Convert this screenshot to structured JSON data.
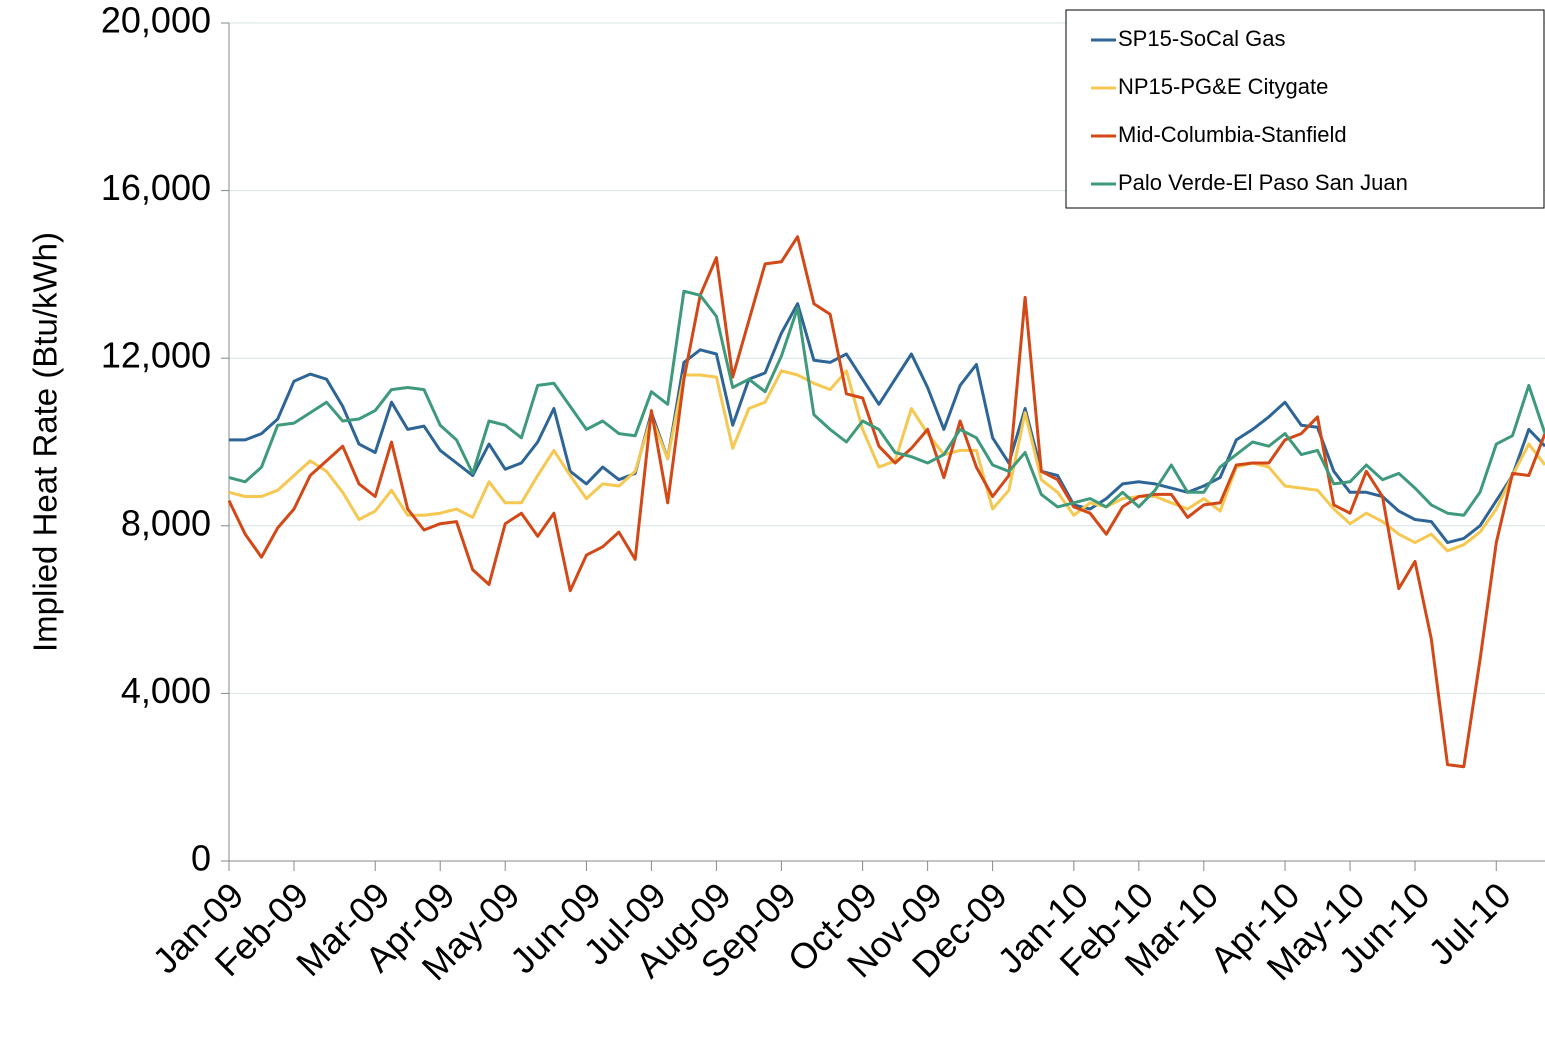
{
  "chart_data": {
    "type": "line",
    "y_label": "Implied Heat Rate (Btu/kWh)",
    "categories": [
      "Jan-09",
      null,
      null,
      null,
      "Feb-09",
      null,
      null,
      null,
      null,
      "Mar-09",
      null,
      null,
      null,
      "Apr-09",
      null,
      null,
      null,
      "May-09",
      null,
      null,
      null,
      null,
      "Jun-09",
      null,
      null,
      null,
      "Jul-09",
      null,
      null,
      null,
      "Aug-09",
      null,
      null,
      null,
      "Sep-09",
      null,
      null,
      null,
      null,
      "Oct-09",
      null,
      null,
      null,
      "Nov-09",
      null,
      null,
      null,
      "Dec-09",
      null,
      null,
      null,
      null,
      "Jan-10",
      null,
      null,
      null,
      "Feb-10",
      null,
      null,
      null,
      "Mar-10",
      null,
      null,
      null,
      null,
      "Apr-10",
      null,
      null,
      null,
      "May-10",
      null,
      null,
      null,
      "Jun-10",
      null,
      null,
      null,
      null,
      "Jul-10",
      null,
      null,
      null
    ],
    "series": [
      {
        "name": "SP15-SoCal Gas",
        "color": "#2e6597",
        "values": [
          10050,
          10050,
          10200,
          10550,
          11450,
          11620,
          11500,
          10850,
          9950,
          9750,
          10950,
          10300,
          10380,
          9800,
          9500,
          9200,
          9950,
          9350,
          9500,
          10000,
          10800,
          9300,
          9000,
          9400,
          9100,
          9250,
          10700,
          9600,
          11900,
          12200,
          12100,
          10400,
          11500,
          11650,
          12600,
          13300,
          11950,
          11900,
          12100,
          11500,
          10900,
          11500,
          12100,
          11300,
          10300,
          11350,
          11850,
          10100,
          9500,
          10800,
          9300,
          9200,
          8500,
          8400,
          8650,
          9000,
          9050,
          9000,
          8900,
          8800,
          8950,
          9150,
          10050,
          10300,
          10600,
          10950,
          10400,
          10350,
          9300,
          8800,
          8800,
          8700,
          8350,
          8150,
          8100,
          7600,
          7700,
          8000,
          8600,
          9200,
          10300,
          9900
        ]
      },
      {
        "name": "NP15-PG&E Citygate",
        "color": "#f6c851",
        "values": [
          8800,
          8700,
          8700,
          8850,
          9200,
          9550,
          9300,
          8800,
          8150,
          8350,
          8850,
          8250,
          8250,
          8300,
          8400,
          8200,
          9050,
          8550,
          8550,
          9200,
          9800,
          9200,
          8650,
          9000,
          8950,
          9300,
          10600,
          9600,
          11600,
          11600,
          11550,
          9850,
          10800,
          10950,
          11700,
          11600,
          11400,
          11250,
          11700,
          10300,
          9400,
          9550,
          10800,
          10200,
          9700,
          9800,
          9800,
          8400,
          8850,
          10700,
          9100,
          8800,
          8250,
          8550,
          8450,
          8650,
          8700,
          8700,
          8550,
          8400,
          8650,
          8350,
          9400,
          9500,
          9400,
          8950,
          8900,
          8850,
          8400,
          8050,
          8300,
          8100,
          7800,
          7600,
          7800,
          7400,
          7550,
          7850,
          8400,
          9200,
          9950,
          9450
        ]
      },
      {
        "name": "Mid-Columbia-Stanfield",
        "color": "#d34817",
        "values": [
          8600,
          7800,
          7250,
          7950,
          8400,
          9200,
          9550,
          9900,
          9000,
          8700,
          10000,
          8400,
          7900,
          8050,
          8100,
          6950,
          6600,
          8050,
          8300,
          7750,
          8300,
          6450,
          7300,
          7500,
          7850,
          7200,
          10750,
          8550,
          11500,
          13500,
          14400,
          11550,
          12900,
          14250,
          14300,
          14900,
          13300,
          13050,
          11150,
          11050,
          9900,
          9500,
          9850,
          10300,
          9150,
          10500,
          9400,
          8700,
          9200,
          13450,
          9300,
          9100,
          8450,
          8300,
          7800,
          8450,
          8700,
          8750,
          8750,
          8200,
          8500,
          8550,
          9450,
          9500,
          9500,
          10050,
          10200,
          10600,
          8500,
          8300,
          9300,
          8700,
          6500,
          7150,
          5300,
          2300,
          2250,
          4800,
          7600,
          9250,
          9200,
          10200
        ]
      },
      {
        "name": "Palo Verde-El Paso San Juan",
        "color": "#3e9a7a",
        "values": [
          9150,
          9050,
          9400,
          10400,
          10450,
          10700,
          10950,
          10500,
          10550,
          10750,
          11250,
          11300,
          11250,
          10400,
          10050,
          9250,
          10500,
          10400,
          10100,
          11350,
          11400,
          10850,
          10300,
          10500,
          10200,
          10150,
          11200,
          10900,
          13600,
          13500,
          13000,
          11300,
          11500,
          11200,
          12050,
          13200,
          10650,
          10300,
          10000,
          10500,
          10300,
          9750,
          9650,
          9500,
          9700,
          10300,
          10100,
          9450,
          9300,
          9750,
          8750,
          8450,
          8550,
          8650,
          8450,
          8800,
          8450,
          8850,
          9450,
          8800,
          8800,
          9400,
          9700,
          10000,
          9900,
          10200,
          9700,
          9800,
          9000,
          9050,
          9450,
          9100,
          9250,
          8900,
          8500,
          8300,
          8250,
          8800,
          9950,
          10150,
          11350,
          10200
        ]
      }
    ],
    "ylim": [
      0,
      20000
    ],
    "yticks": [
      0,
      {
        "value": 4000,
        "label": "4,000"
      },
      {
        "value": 8000,
        "label": "8,000"
      },
      {
        "value": 12000,
        "label": "12,000"
      },
      {
        "value": 16000,
        "label": "16,000"
      },
      {
        "value": 20000,
        "label": "20,000"
      }
    ],
    "grid": true,
    "legend": "upper right"
  }
}
